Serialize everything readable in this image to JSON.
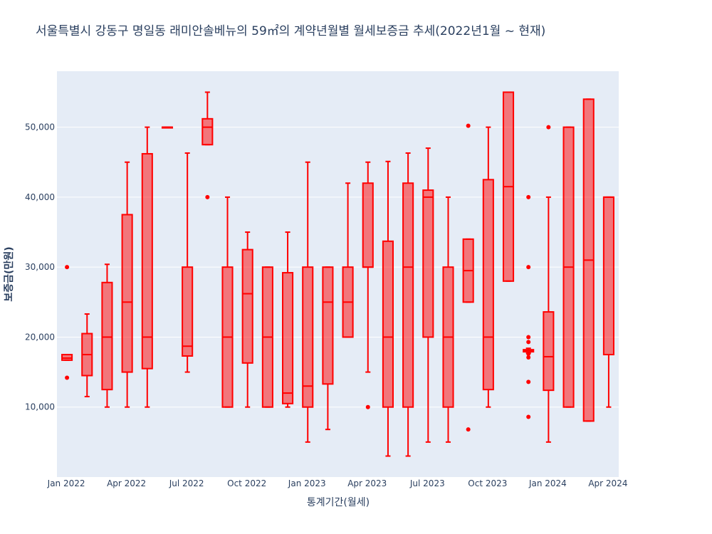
{
  "chart_data": {
    "type": "box",
    "title": "서울특별시 강동구 명일동 래미안솔베뉴의 59㎡의 계약년월별 월세보증금 추세(2022년1월 ~ 현재)",
    "xlabel": "통계기간(월세)",
    "ylabel": "보증금(만원)",
    "ylim": [
      0,
      58000
    ],
    "x_ticks": [
      "Jan 2022",
      "Apr 2022",
      "Jul 2022",
      "Oct 2022",
      "Jan 2023",
      "Apr 2023",
      "Jul 2023",
      "Oct 2023",
      "Jan 2024",
      "Apr 2024"
    ],
    "y_ticks": [
      10000,
      20000,
      30000,
      40000,
      50000
    ],
    "y_tick_labels": [
      "10,000",
      "20,000",
      "30,000",
      "40,000",
      "50,000"
    ],
    "grid": true,
    "colors": {
      "line": "#ff0000",
      "fill": "rgba(255,0,0,0.5)",
      "plot_bg": "#e5ecf6",
      "grid": "#ffffff"
    },
    "boxes": [
      {
        "period": "2022-01",
        "lower_whisker": 16700,
        "q1": 16700,
        "median": 17000,
        "q3": 17500,
        "upper_whisker": 17500,
        "outliers": [
          30000,
          14200
        ]
      },
      {
        "period": "2022-02",
        "lower_whisker": 11500,
        "q1": 14500,
        "median": 17500,
        "q3": 20500,
        "upper_whisker": 23300,
        "outliers": []
      },
      {
        "period": "2022-03",
        "lower_whisker": 10000,
        "q1": 12500,
        "median": 20000,
        "q3": 27800,
        "upper_whisker": 30400,
        "outliers": []
      },
      {
        "period": "2022-04",
        "lower_whisker": 10000,
        "q1": 15000,
        "median": 25000,
        "q3": 37500,
        "upper_whisker": 45000,
        "outliers": []
      },
      {
        "period": "2022-05",
        "lower_whisker": 10000,
        "q1": 15500,
        "median": 20000,
        "q3": 46200,
        "upper_whisker": 50000,
        "outliers": []
      },
      {
        "period": "2022-06",
        "lower_whisker": 50000,
        "q1": 50000,
        "median": 50000,
        "q3": 50000,
        "upper_whisker": 50000,
        "outliers": []
      },
      {
        "period": "2022-07",
        "lower_whisker": 15000,
        "q1": 17300,
        "median": 18700,
        "q3": 30000,
        "upper_whisker": 46300,
        "outliers": []
      },
      {
        "period": "2022-08",
        "lower_whisker": 47500,
        "q1": 47500,
        "median": 50000,
        "q3": 51200,
        "upper_whisker": 55000,
        "outliers": [
          40000
        ]
      },
      {
        "period": "2022-09",
        "lower_whisker": 10000,
        "q1": 10000,
        "median": 20000,
        "q3": 30000,
        "upper_whisker": 40000,
        "outliers": []
      },
      {
        "period": "2022-10",
        "lower_whisker": 10000,
        "q1": 16300,
        "median": 26200,
        "q3": 32500,
        "upper_whisker": 35000,
        "outliers": []
      },
      {
        "period": "2022-11",
        "lower_whisker": 10000,
        "q1": 10000,
        "median": 20000,
        "q3": 30000,
        "upper_whisker": 30000,
        "outliers": []
      },
      {
        "period": "2022-12",
        "lower_whisker": 10000,
        "q1": 10500,
        "median": 12000,
        "q3": 29200,
        "upper_whisker": 35000,
        "outliers": []
      },
      {
        "period": "2023-01",
        "lower_whisker": 5000,
        "q1": 10000,
        "median": 13000,
        "q3": 30000,
        "upper_whisker": 45000,
        "outliers": []
      },
      {
        "period": "2023-02",
        "lower_whisker": 6800,
        "q1": 13300,
        "median": 25000,
        "q3": 30000,
        "upper_whisker": 30000,
        "outliers": []
      },
      {
        "period": "2023-03",
        "lower_whisker": 20000,
        "q1": 20000,
        "median": 25000,
        "q3": 30000,
        "upper_whisker": 42000,
        "outliers": []
      },
      {
        "period": "2023-04",
        "lower_whisker": 15000,
        "q1": 30000,
        "median": 30000,
        "q3": 42000,
        "upper_whisker": 45000,
        "outliers": [
          10000
        ]
      },
      {
        "period": "2023-05",
        "lower_whisker": 3000,
        "q1": 10000,
        "median": 20000,
        "q3": 33700,
        "upper_whisker": 45100,
        "outliers": []
      },
      {
        "period": "2023-06",
        "lower_whisker": 3000,
        "q1": 10000,
        "median": 30000,
        "q3": 42000,
        "upper_whisker": 46300,
        "outliers": []
      },
      {
        "period": "2023-07",
        "lower_whisker": 5000,
        "q1": 20000,
        "median": 40000,
        "q3": 41000,
        "upper_whisker": 47000,
        "outliers": []
      },
      {
        "period": "2023-08",
        "lower_whisker": 5000,
        "q1": 10000,
        "median": 20000,
        "q3": 30000,
        "upper_whisker": 40000,
        "outliers": []
      },
      {
        "period": "2023-09",
        "lower_whisker": 25000,
        "q1": 25000,
        "median": 29500,
        "q3": 34000,
        "upper_whisker": 34000,
        "outliers": [
          50200,
          6800
        ]
      },
      {
        "period": "2023-10",
        "lower_whisker": 10000,
        "q1": 12500,
        "median": 20000,
        "q3": 42500,
        "upper_whisker": 50000,
        "outliers": []
      },
      {
        "period": "2023-11",
        "lower_whisker": 28000,
        "q1": 28000,
        "median": 41500,
        "q3": 55000,
        "upper_whisker": 55000,
        "outliers": []
      },
      {
        "period": "2023-12",
        "lower_whisker": 17700,
        "q1": 17900,
        "median": 18100,
        "q3": 18200,
        "upper_whisker": 18400,
        "outliers": [
          40000,
          30000,
          20000,
          19300,
          17600,
          17100,
          13600,
          8600
        ]
      },
      {
        "period": "2024-01",
        "lower_whisker": 5000,
        "q1": 12400,
        "median": 17200,
        "q3": 23600,
        "upper_whisker": 40000,
        "outliers": [
          50000
        ]
      },
      {
        "period": "2024-02",
        "lower_whisker": 10000,
        "q1": 10000,
        "median": 30000,
        "q3": 50000,
        "upper_whisker": 50000,
        "outliers": []
      },
      {
        "period": "2024-03",
        "lower_whisker": 8000,
        "q1": 8000,
        "median": 31000,
        "q3": 54000,
        "upper_whisker": 54000,
        "outliers": []
      },
      {
        "period": "2024-04",
        "lower_whisker": 10000,
        "q1": 17500,
        "median": 40000,
        "q3": 40000,
        "upper_whisker": 40000,
        "outliers": []
      }
    ]
  }
}
